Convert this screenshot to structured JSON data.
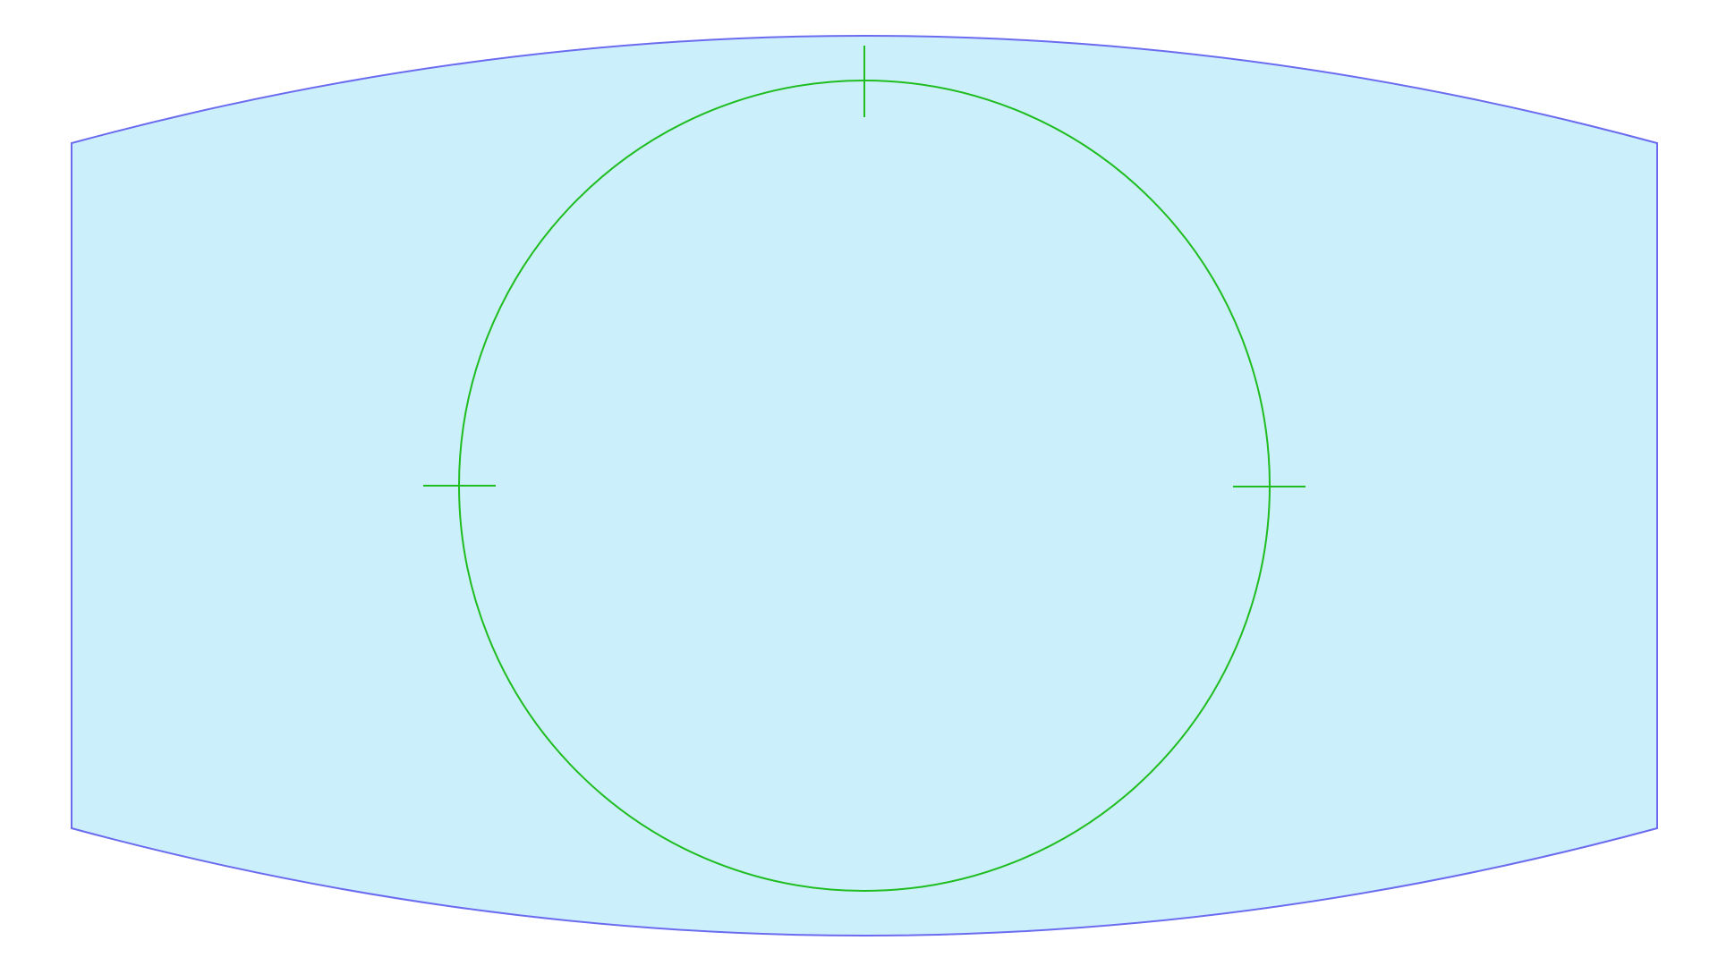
{
  "colors": {
    "background": "#ffffff",
    "region_fill": "#cceffc",
    "region_stroke": "#6b6bf0",
    "circle_stroke": "#1fbd1f",
    "marker_stroke": "#1fbd1f"
  },
  "shapes": {
    "outer_region": {
      "shape": "barrel",
      "description_visible": false
    },
    "circle": {
      "shape": "circle"
    },
    "markers": [
      "top-marker",
      "left-marker",
      "right-marker"
    ]
  }
}
